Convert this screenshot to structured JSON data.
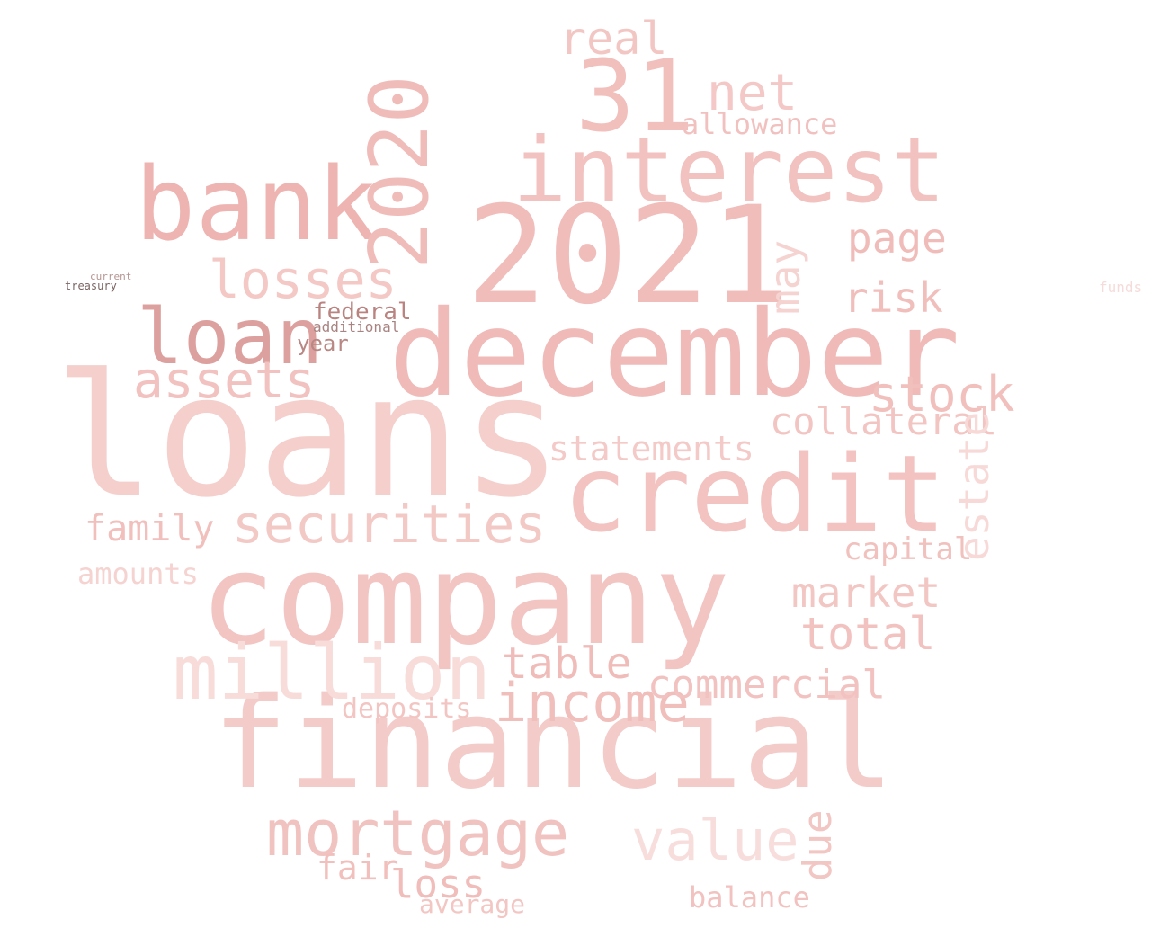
{
  "words": [
    {
      "text": "loans",
      "color": "#f4cfcc"
    },
    {
      "text": "company",
      "color": "#f2c5c3"
    },
    {
      "text": "financial",
      "color": "#f3cbc9"
    },
    {
      "text": "2021",
      "color": "#f0bdbb"
    },
    {
      "text": "december",
      "color": "#efbab8"
    },
    {
      "text": "credit",
      "color": "#f2c3c0"
    },
    {
      "text": "interest",
      "color": "#f1c2bf"
    },
    {
      "text": "bank",
      "color": "#eeb4b1"
    },
    {
      "text": "2020",
      "color": "#f0bcb9"
    },
    {
      "text": "31",
      "color": "#f1bfbc"
    },
    {
      "text": "loan",
      "color": "#dca19e"
    },
    {
      "text": "million",
      "color": "#f7dcda"
    },
    {
      "text": "mortgage",
      "color": "#f1c3c0"
    },
    {
      "text": "securities",
      "color": "#f3c9c6"
    },
    {
      "text": "value",
      "color": "#f7dedc"
    },
    {
      "text": "income",
      "color": "#f0bebb"
    },
    {
      "text": "losses",
      "color": "#f3c8c5"
    },
    {
      "text": "assets",
      "color": "#f1c2bf"
    },
    {
      "text": "stock",
      "color": "#f1c0bd"
    },
    {
      "text": "statements",
      "color": "#f3cac7"
    },
    {
      "text": "commercial",
      "color": "#f1c2c0"
    },
    {
      "text": "total",
      "color": "#f1c2bf"
    },
    {
      "text": "market",
      "color": "#f2c6c3"
    },
    {
      "text": "collateral",
      "color": "#f2c5c2"
    },
    {
      "text": "risk",
      "color": "#f0bebb"
    },
    {
      "text": "page",
      "color": "#f0bcb9"
    },
    {
      "text": "net",
      "color": "#f3c8c6"
    },
    {
      "text": "real",
      "color": "#f2c6c3"
    },
    {
      "text": "allowance",
      "color": "#f1c1bf"
    },
    {
      "text": "table",
      "color": "#f0bcb9"
    },
    {
      "text": "family",
      "color": "#f1c0bd"
    },
    {
      "text": "may",
      "color": "#f5d3d1"
    },
    {
      "text": "estate",
      "color": "#f7dad8"
    },
    {
      "text": "due",
      "color": "#f2c6c3"
    },
    {
      "text": "balance",
      "color": "#f1c2bf"
    },
    {
      "text": "loss",
      "color": "#f0bdba"
    },
    {
      "text": "deposits",
      "color": "#f2c5c2"
    },
    {
      "text": "capital",
      "color": "#f1c1be"
    },
    {
      "text": "fair",
      "color": "#f1c0bd"
    },
    {
      "text": "average",
      "color": "#f2c6c3"
    },
    {
      "text": "amounts",
      "color": "#f5d3d1"
    },
    {
      "text": "federal",
      "color": "#b98380"
    },
    {
      "text": "year",
      "color": "#b98784"
    },
    {
      "text": "additional",
      "color": "#a88381"
    },
    {
      "text": "treasury",
      "color": "#7a6462"
    },
    {
      "text": "current",
      "color": "#b59592"
    },
    {
      "text": "funds",
      "color": "#f5dcda"
    }
  ]
}
